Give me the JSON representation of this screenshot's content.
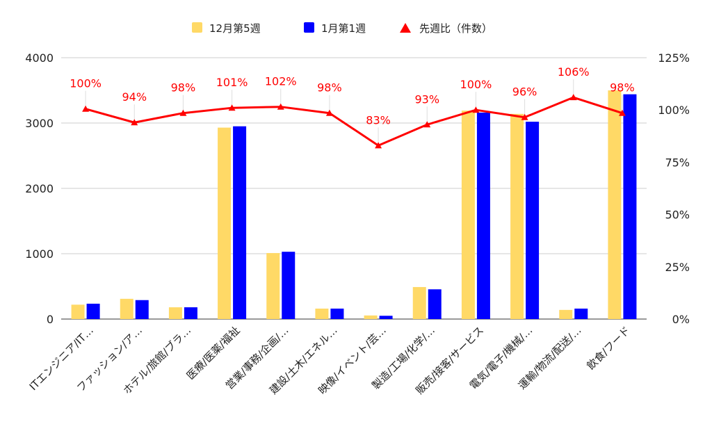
{
  "chart_data": {
    "type": "bar",
    "categories": [
      "ITエンジニア/IT…",
      "ファッション/ア…",
      "ホテル/旅館/ブラ…",
      "医療/医薬/福祉",
      "営業/事務/企画/…",
      "建設/土木/エネル…",
      "映像/イベント/芸…",
      "製造/工場/化学/…",
      "販売/接客/サービス",
      "電気/電子/機械/…",
      "運輸/物流/配送/…",
      "飲食/フード"
    ],
    "series": [
      {
        "name": "12月第5週",
        "type": "bar",
        "axis": "left",
        "color": "#ffd966",
        "values": [
          220,
          310,
          180,
          2930,
          1010,
          160,
          55,
          490,
          3190,
          3140,
          140,
          3500
        ]
      },
      {
        "name": "1月第1週",
        "type": "bar",
        "axis": "left",
        "color": "#0000ff",
        "values": [
          235,
          290,
          180,
          2950,
          1030,
          160,
          50,
          455,
          3160,
          3020,
          160,
          3440
        ]
      },
      {
        "name": "先週比（件数）",
        "type": "line",
        "axis": "right",
        "color": "#ff0000",
        "values": [
          100.5,
          94,
          98.5,
          101,
          101.5,
          98.5,
          83,
          93,
          100,
          96.5,
          106,
          98.5
        ],
        "labels": [
          "100%",
          "94%",
          "98%",
          "101%",
          "102%",
          "98%",
          "83%",
          "93%",
          "100%",
          "96%",
          "106%",
          "98%"
        ]
      }
    ],
    "y_left": {
      "min": 0,
      "max": 4000,
      "ticks": [
        "0",
        "1000",
        "2000",
        "3000",
        "4000"
      ]
    },
    "y_right": {
      "min": 0,
      "max": 125,
      "ticks": [
        "0%",
        "25%",
        "50%",
        "75%",
        "100%",
        "125%"
      ]
    },
    "grid": true,
    "legend": "top-center",
    "title": "",
    "xlabel": "",
    "ylabel": ""
  }
}
